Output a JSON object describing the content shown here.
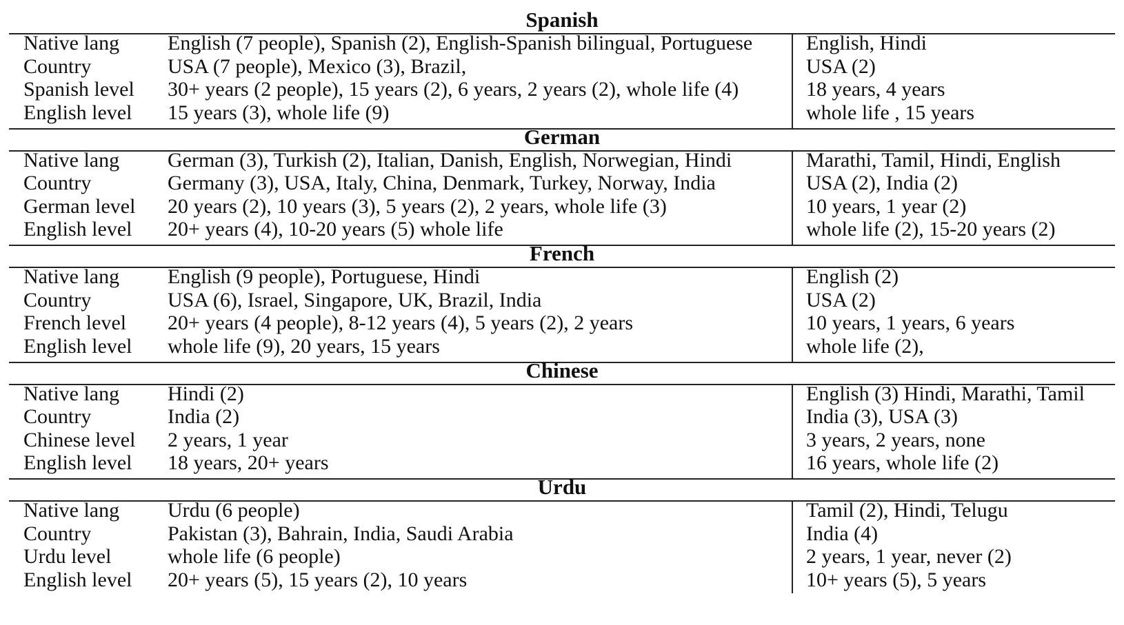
{
  "sections": [
    {
      "title": "Spanish",
      "rows": [
        {
          "label": "Native lang",
          "group1": "English (7 people), Spanish (2), English-Spanish bilingual, Portuguese",
          "group2": "English, Hindi"
        },
        {
          "label": "Country",
          "group1": "USA (7 people), Mexico (3), Brazil,",
          "group2": "USA (2)"
        },
        {
          "label": "Spanish level",
          "group1": "30+ years (2 people), 15 years (2), 6 years, 2 years (2), whole life (4)",
          "group2": "18 years, 4 years"
        },
        {
          "label": "English level",
          "group1": "15 years (3), whole life (9)",
          "group2": "whole life , 15 years"
        }
      ]
    },
    {
      "title": "German",
      "rows": [
        {
          "label": "Native lang",
          "group1": "German (3), Turkish (2), Italian, Danish, English, Norwegian, Hindi",
          "group2": "Marathi, Tamil, Hindi, English"
        },
        {
          "label": "Country",
          "group1": "Germany (3), USA, Italy, China, Denmark, Turkey, Norway, India",
          "group2": "USA (2), India (2)"
        },
        {
          "label": "German level",
          "group1": "20 years (2), 10 years (3), 5 years (2), 2 years, whole life (3)",
          "group2": "10 years, 1 year (2)"
        },
        {
          "label": "English level",
          "group1": "20+ years (4), 10-20 years (5) whole life",
          "group2": "whole life  (2), 15-20 years (2)"
        }
      ]
    },
    {
      "title": "French",
      "rows": [
        {
          "label": "Native lang",
          "group1": "English (9 people), Portuguese, Hindi",
          "group2": "English (2)"
        },
        {
          "label": "Country",
          "group1": "USA (6), Israel, Singapore, UK, Brazil, India",
          "group2": "USA (2)"
        },
        {
          "label": "French level",
          "group1": "20+ years (4 people), 8-12 years (4), 5 years (2), 2 years",
          "group2": "10 years, 1 years, 6 years"
        },
        {
          "label": "English level",
          "group1": "whole life (9), 20 years, 15 years",
          "group2": "whole life (2),"
        }
      ]
    },
    {
      "title": "Chinese",
      "rows": [
        {
          "label": "Native lang",
          "group1": "Hindi (2)",
          "group2": "English (3) Hindi, Marathi, Tamil"
        },
        {
          "label": "Country",
          "group1": "India (2)",
          "group2": "India (3), USA (3)"
        },
        {
          "label": "Chinese level",
          "group1": "2 years, 1 year",
          "group2": "3 years, 2 years, none"
        },
        {
          "label": "English level",
          "group1": "18 years, 20+ years",
          "group2": "16 years, whole life (2)"
        }
      ]
    },
    {
      "title": "Urdu",
      "rows": [
        {
          "label": "Native lang",
          "group1": "Urdu (6 people)",
          "group2": "Tamil (2), Hindi, Telugu"
        },
        {
          "label": "Country",
          "group1": "Pakistan (3), Bahrain, India, Saudi Arabia",
          "group2": "India (4)"
        },
        {
          "label": "Urdu level",
          "group1": "whole life (6 people)",
          "group2": "2 years, 1 year, never (2)"
        },
        {
          "label": "English level",
          "group1": "20+ years (5), 15 years (2), 10 years",
          "group2": "10+ years (5), 5 years"
        }
      ]
    }
  ]
}
